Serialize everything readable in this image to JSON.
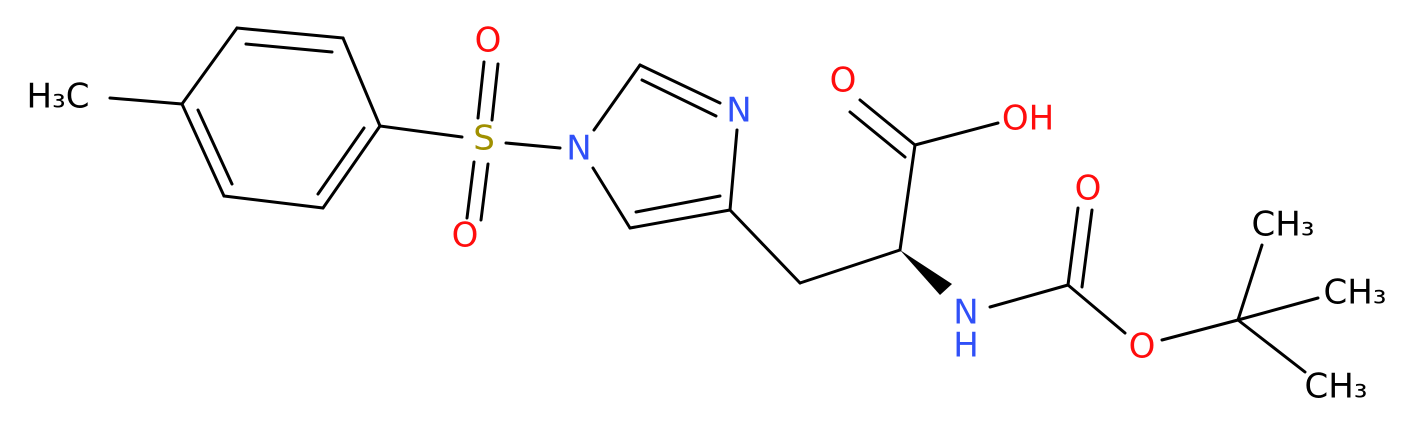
{
  "atoms": [
    {
      "label": "H₃C"
    },
    {
      "label": "S"
    },
    {
      "label": "O"
    },
    {
      "label": "O"
    },
    {
      "label": "N"
    },
    {
      "label": "N"
    },
    {
      "label": "O"
    },
    {
      "label": "OH"
    },
    {
      "label": "N"
    },
    {
      "label": "H"
    },
    {
      "label": "O"
    },
    {
      "label": "O"
    },
    {
      "label": "CH₃"
    },
    {
      "label": "CH₃"
    },
    {
      "label": "CH₃"
    }
  ]
}
